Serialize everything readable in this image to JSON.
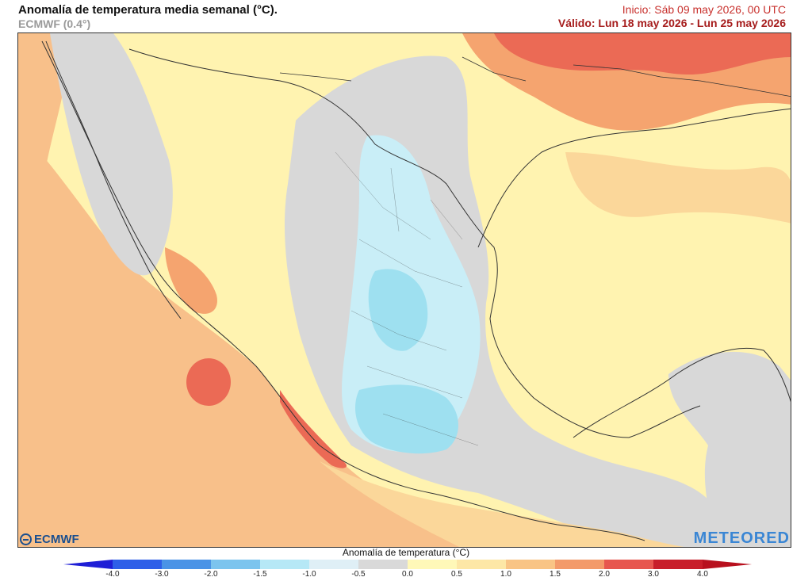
{
  "header": {
    "title": "Anomalía de temperatura media semanal (°C).",
    "subtitle": "ECMWF (0.4°)",
    "init": "Inicio: Sáb 09 may 2026, 00 UTC",
    "valid": "Válido: Lun 18 may 2026 - Lun 25 may 2026"
  },
  "logos": {
    "left": "ECMWF",
    "right": "METEORED"
  },
  "legend": {
    "title": "Anomalía de temperatura (°C)",
    "ticks": [
      "-4.0",
      "-3.0",
      "-2.0",
      "-1.5",
      "-1.0",
      "-0.5",
      "0.0",
      "0.5",
      "1.0",
      "1.5",
      "2.0",
      "3.0",
      "4.0"
    ],
    "colors": [
      "#1f1fd6",
      "#2e5fe8",
      "#4a93e6",
      "#7cc4ee",
      "#b6e8f6",
      "#dfeff6",
      "#d9d9d9",
      "#fff8b8",
      "#fde7a6",
      "#f9c485",
      "#f39a6a",
      "#e7574f",
      "#c81e2a",
      "#b8101e"
    ]
  },
  "map": {
    "colors": {
      "sea_base": "#f8c08a",
      "land_base": "#fff3b0",
      "neutral": "#d8d8d8",
      "cool_light": "#c9eef7",
      "cool": "#9ee0f0",
      "warm_light": "#fbd79a",
      "warm": "#f5a46f",
      "hot": "#eb6a55",
      "border": "#333333"
    }
  }
}
